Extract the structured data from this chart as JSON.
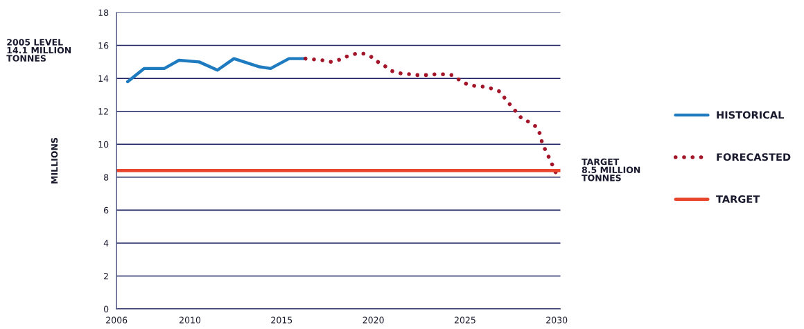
{
  "chart_data": {
    "type": "line",
    "ylabel": "MILLIONS",
    "series": [
      {
        "name": "HISTORICAL",
        "color": "#1f7bbf",
        "line_style": "solid",
        "x": [
          2006.6,
          2007.5,
          2008.6,
          2009.4,
          2010.5,
          2011.5,
          2012.4,
          2013.8,
          2014.4,
          2015.4,
          2016.3
        ],
        "values": [
          13.8,
          14.6,
          14.6,
          15.1,
          15.0,
          14.5,
          15.2,
          14.7,
          14.6,
          15.2,
          15.2
        ]
      },
      {
        "name": "FORECASTED",
        "color": "#a3162a",
        "line_style": "dotted",
        "x": [
          2016.3,
          2016.8,
          2017.25,
          2017.7,
          2018.2,
          2018.6,
          2019.05,
          2019.5,
          2019.9,
          2020.25,
          2020.7,
          2021.0,
          2021.5,
          2022.0,
          2022.4,
          2022.9,
          2023.4,
          2023.85,
          2024.3,
          2024.7,
          2025.1,
          2025.5,
          2026.0,
          2026.4,
          2026.9,
          2027.2,
          2027.5,
          2027.8,
          2028.1,
          2028.5,
          2028.9,
          2029.1,
          2029.2,
          2029.4,
          2029.6,
          2029.8,
          2030.0
        ],
        "values": [
          15.2,
          15.15,
          15.1,
          15.0,
          15.15,
          15.35,
          15.5,
          15.5,
          15.3,
          15.0,
          14.7,
          14.45,
          14.3,
          14.25,
          14.2,
          14.2,
          14.25,
          14.25,
          14.2,
          13.9,
          13.65,
          13.55,
          13.5,
          13.4,
          13.2,
          12.75,
          12.35,
          11.95,
          11.55,
          11.35,
          11.05,
          10.6,
          10.1,
          9.6,
          9.15,
          8.65,
          8.15
        ]
      },
      {
        "name": "TARGET",
        "color": "#e8452c",
        "line_style": "solid",
        "x": [
          2006,
          2030.2
        ],
        "values": [
          8.4,
          8.4
        ]
      }
    ],
    "annotations": [
      "2005 LEVEL\n14.1 MILLION\nTONNES",
      {
        "text": "TARGET\n8.5 MILLION\nTONNES",
        "x": 2030.2,
        "y": 8.4
      }
    ],
    "xlim": [
      2006,
      2030.2
    ],
    "xticks": [
      2006,
      2010,
      2015,
      2020,
      2025,
      2030
    ],
    "ylim": [
      0,
      18
    ],
    "yticks": [
      0,
      2,
      4,
      6,
      8,
      10,
      12,
      14,
      16,
      18
    ],
    "grid": "y",
    "legend": "right"
  }
}
